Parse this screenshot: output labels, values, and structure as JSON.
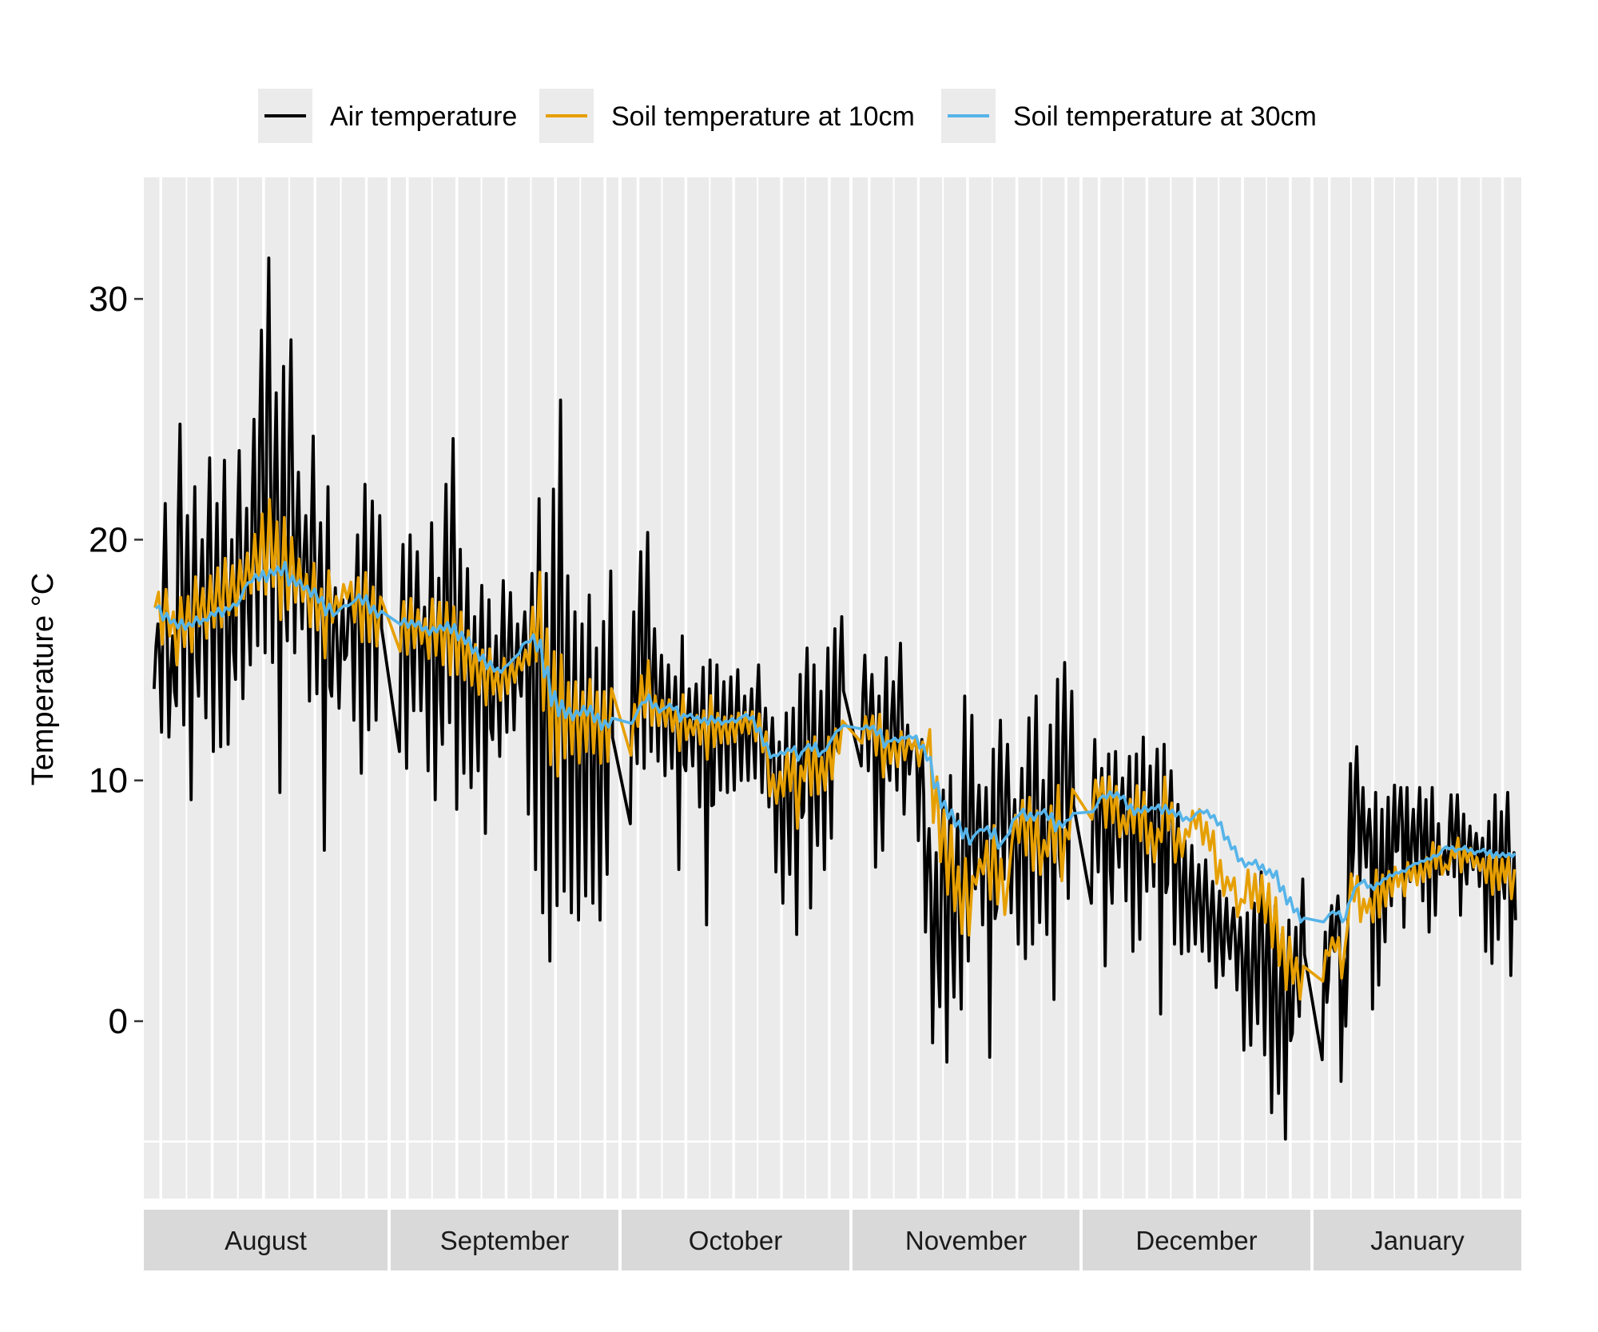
{
  "chart_data": {
    "type": "line",
    "title": "",
    "xlabel": "",
    "ylabel": "Temperature °C",
    "ylim": [
      -6.5,
      35
    ],
    "yticks": [
      0,
      10,
      20,
      30
    ],
    "ytick_labels": [
      "0",
      "10",
      "20",
      "30"
    ],
    "grid": true,
    "legend_position": "top",
    "facets": [
      "August",
      "September",
      "October",
      "November",
      "December",
      "January"
    ],
    "facet_days": [
      31,
      30,
      31,
      30,
      31,
      31
    ],
    "series": [
      {
        "name": "Air temperature",
        "color": "#000000",
        "daily_max": {
          "August": [
            16.5,
            21.5,
            16,
            24.8,
            21,
            22.2,
            20,
            23.4,
            21.5,
            23.3,
            20,
            23.7,
            21.3,
            25,
            28.7,
            31.7,
            26.1,
            27.2,
            28.3,
            22.8,
            21,
            24.3,
            20.7,
            22.2,
            18,
            17.5,
            18,
            20.2,
            22.3,
            21.6,
            21
          ],
          "September": [
            19.8,
            20.2,
            19.5,
            17.2,
            20.7,
            18.4,
            22.3,
            24.2,
            19.6,
            18.8,
            16.8,
            18.1,
            17.5,
            16,
            18.3,
            17.8,
            16.5,
            17,
            18.6,
            21.7,
            18.6,
            22.1,
            25.8,
            18.5,
            17,
            16.5,
            17.7,
            15.5,
            16.6,
            18.7
          ],
          "October": [
            17,
            19.5,
            20.3,
            16.3,
            15.2,
            14.8,
            14.3,
            16,
            13.8,
            14,
            14.7,
            15,
            14.8,
            14.1,
            14.3,
            14.6,
            13.5,
            13.8,
            14.8,
            13,
            12.6,
            11.6,
            12.8,
            13,
            14.4,
            15.5,
            14.8,
            13.7,
            15.5,
            16.3,
            16.8
          ],
          "November": [
            15.2,
            14.4,
            13.5,
            15.1,
            14.1,
            15.7,
            12.3,
            11.6,
            11.7,
            8,
            7,
            9.6,
            10.2,
            8.6,
            13.5,
            12.7,
            9.8,
            9.7,
            11.3,
            12.5,
            11.5,
            9.2,
            10.5,
            12.6,
            13.5,
            10,
            12.3,
            14.2,
            14.9,
            13.7
          ],
          "December": [
            11.7,
            10.5,
            11.1,
            11.2,
            10.1,
            11,
            11.1,
            11.8,
            10.6,
            11.3,
            11.5,
            10.4,
            9,
            7.5,
            7.3,
            6.5,
            6.7,
            5.8,
            5.4,
            5.1,
            4.7,
            4.3,
            4.5,
            4.9,
            6.2,
            5.3,
            4.8,
            3.6,
            4.2,
            3.9,
            5.9
          ],
          "January": [
            3.7,
            4.8,
            5.2,
            2.6,
            10.7,
            11.4,
            9.7,
            8.8,
            9.5,
            8.8,
            9.3,
            9.8,
            9.7,
            9.7,
            8.8,
            9.7,
            9.2,
            9.7,
            8.2,
            7.1,
            9.4,
            9.4,
            8.6,
            8.1,
            7.8,
            7.6,
            8.3,
            9.4,
            8.7,
            9.5,
            7
          ]
        },
        "daily_min": {
          "August": [
            13.8,
            12,
            11.8,
            13.1,
            12.3,
            9.2,
            13.5,
            12.6,
            11.2,
            11.4,
            11.5,
            14.2,
            13.4,
            14.8,
            15.6,
            15.3,
            14.9,
            9.5,
            15.8,
            15.3,
            16.3,
            13.3,
            13.6,
            7.1,
            13.5,
            13,
            15.2,
            12.5,
            10.3,
            12.1,
            12.5
          ],
          "September": [
            11.2,
            10.5,
            12.9,
            12.9,
            10.4,
            9.2,
            11.5,
            12.4,
            8.8,
            10.3,
            9.7,
            10.4,
            7.8,
            11.7,
            11,
            12,
            12.1,
            13.5,
            8.6,
            6.3,
            4.5,
            2.5,
            4.8,
            5.4,
            4.5,
            4.2,
            5.2,
            4.9,
            4.2,
            6.1
          ],
          "October": [
            8.2,
            10.7,
            10.5,
            11.2,
            10.8,
            10.2,
            10.5,
            6.3,
            10.4,
            10.6,
            8.9,
            4,
            9,
            9.6,
            9.5,
            9.6,
            10,
            10,
            10.1,
            9.5,
            8.9,
            6.2,
            4.9,
            6.1,
            3.6,
            8.7,
            4.7,
            7.3,
            6.3,
            7.6,
            11.2
          ],
          "November": [
            10.6,
            10.4,
            6.4,
            7.1,
            10,
            9.6,
            8.6,
            11.2,
            7.5,
            3.7,
            -0.9,
            0.6,
            -1.7,
            1,
            0.5,
            2.5,
            5.5,
            4,
            -1.5,
            4.7,
            5.9,
            4.5,
            3.2,
            2.6,
            3.2,
            4.1,
            3.6,
            0.9,
            6,
            5.1
          ],
          "December": [
            4.9,
            6.2,
            2.3,
            4.9,
            6.4,
            5,
            2.9,
            3.4,
            5.4,
            5.6,
            0.3,
            5.7,
            3.2,
            2.8,
            2.9,
            3.2,
            2.9,
            2.5,
            1.4,
            1.9,
            2.6,
            1.3,
            -1.2,
            -1,
            -0.1,
            -1.4,
            -3.8,
            -3,
            -4.9,
            -0.5,
            0.2
          ],
          "January": [
            -1.6,
            1.7,
            2.9,
            -2.5,
            2.2,
            7.1,
            5.8,
            6.4,
            0.5,
            1.5,
            3.3,
            4.8,
            7.1,
            3.9,
            5.8,
            6,
            5,
            3.7,
            4.4,
            6.2,
            6.1,
            6,
            4.4,
            5.7,
            6.3,
            5.6,
            2.9,
            2.4,
            3.4,
            5.1,
            1.9
          ]
        }
      },
      {
        "name": "Soil temperature at 10cm",
        "color": "#E69F00",
        "daily": {
          "August": [
            17.5,
            16.8,
            16.5,
            16.2,
            16.6,
            16.9,
            17.2,
            17.2,
            17.6,
            17.8,
            17.9,
            18,
            18.5,
            19,
            19.5,
            19.7,
            19.4,
            18.8,
            18.6,
            18.3,
            18,
            17.7,
            17.1,
            16.9,
            17.1,
            17.6,
            17.9,
            17.5,
            17.2,
            16.9,
            16.6
          ],
          "September": [
            16.4,
            16.4,
            16.3,
            16.2,
            16.3,
            16.3,
            16.1,
            15.8,
            15.7,
            15.2,
            14.8,
            14.5,
            14.3,
            14.1,
            14.2,
            14.3,
            14.6,
            15,
            16,
            16.8,
            14.6,
            13,
            12.7,
            12.5,
            12.6,
            12.2,
            12.7,
            12.4,
            12.2,
            12.3
          ],
          "October": [
            12.1,
            13.3,
            13.8,
            12.9,
            12.8,
            12.8,
            12.5,
            12.4,
            12.1,
            12.3,
            12.2,
            12.2,
            12.1,
            12.1,
            12.1,
            12.2,
            12.4,
            12.4,
            12.2,
            11.6,
            9.8,
            9.7,
            10.3,
            10.4,
            9.3,
            10.8,
            10.6,
            10.2,
            10.7,
            11.1,
            11.8
          ],
          "November": [
            12.1,
            12.2,
            11.9,
            11.1,
            11.2,
            11.3,
            11.3,
            11.5,
            11.1,
            11.6,
            9.2,
            7.7,
            6.7,
            5.5,
            5.2,
            4.8,
            6.2,
            6.8,
            6.6,
            5.8,
            5.1,
            8,
            8.3,
            8.1,
            7.5,
            6.8,
            7.9,
            8.2,
            6.9,
            8.6
          ],
          "December": [
            9.2,
            9.6,
            9.1,
            9,
            8.1,
            8.5,
            8.8,
            8.5,
            7.6,
            7.3,
            8.8,
            8.5,
            7.3,
            7.4,
            8.2,
            8.4,
            7.8,
            7.5,
            6.2,
            5.6,
            5.7,
            4.7,
            5.6,
            5.4,
            5.3,
            4.9,
            4.1,
            3.1,
            2.4,
            2.1,
            1.6
          ],
          "January": [
            2.3,
            3.1,
            3.2,
            2.4,
            5.1,
            5.5,
            4.6,
            4.8,
            5.2,
            5.2,
            5.5,
            5.8,
            5.9,
            5.9,
            6.2,
            6.1,
            6.3,
            6.7,
            6.8,
            6.3,
            6.7,
            7.2,
            6.7,
            6.9,
            6.6,
            6.5,
            6.4,
            6.1,
            6.1,
            6.3,
            5.7
          ]
        }
      },
      {
        "name": "Soil temperature at 30cm",
        "color": "#56B4E9",
        "daily": {
          "August": [
            17.2,
            16.8,
            16.6,
            16.5,
            16.4,
            16.6,
            16.6,
            16.8,
            17,
            17,
            17.2,
            17.4,
            18.1,
            18.4,
            18.5,
            18.5,
            18.7,
            18.8,
            18.3,
            18.2,
            18,
            17.8,
            17.5,
            17.1,
            16.9,
            17.2,
            17.3,
            17.6,
            17.5,
            17.1,
            16.9
          ],
          "September": [
            16.6,
            16.5,
            16.5,
            16.3,
            16.2,
            16.3,
            16.4,
            16.3,
            16,
            15.8,
            15.4,
            15.1,
            14.8,
            14.6,
            14.6,
            14.9,
            15.2,
            15.7,
            15.9,
            15.6,
            14.5,
            13.4,
            13,
            12.8,
            12.7,
            12.9,
            12.9,
            12.6,
            12.3,
            12.4
          ],
          "October": [
            12.5,
            13.1,
            13.4,
            13.1,
            12.9,
            13.1,
            13,
            12.6,
            12.7,
            12.6,
            12.5,
            12.5,
            12.5,
            12.4,
            12.5,
            12.5,
            12.7,
            12.6,
            12.1,
            11.5,
            11,
            11.1,
            11.2,
            11.3,
            11,
            11.4,
            11.4,
            11.1,
            11.4,
            11.9,
            12.2
          ],
          "November": [
            12.2,
            12.2,
            12,
            11.5,
            11.7,
            11.7,
            11.8,
            11.8,
            11.4,
            10.9,
            9.8,
            9,
            8.6,
            8.2,
            7.8,
            7.5,
            7.9,
            8,
            7.8,
            7.3,
            7.7,
            8.4,
            8.7,
            8.5,
            8.5,
            8.7,
            8.5,
            8.1,
            8.2,
            8.5
          ],
          "December": [
            8.8,
            9.3,
            9.4,
            9.4,
            9.3,
            8.9,
            8.7,
            8.8,
            8.8,
            8.9,
            8.8,
            8.7,
            8.6,
            8.4,
            8.4,
            8.7,
            8.7,
            8.5,
            8.2,
            7.6,
            7.2,
            6.7,
            6.5,
            6.6,
            6.4,
            6.2,
            6.1,
            5.5,
            5,
            4.6,
            4.2
          ],
          "January": [
            4.2,
            4.5,
            4.5,
            4.2,
            5,
            5.6,
            5.8,
            5.6,
            5.6,
            5.8,
            6,
            6.1,
            6.2,
            6.3,
            6.5,
            6.6,
            6.7,
            6.8,
            6.9,
            7.2,
            7.2,
            7.1,
            7.2,
            7.1,
            7,
            7.1,
            7,
            6.9,
            6.9,
            6.9,
            6.9
          ]
        }
      }
    ]
  },
  "legend": {
    "items": [
      {
        "label": "Air temperature",
        "color": "#000000"
      },
      {
        "label": "Soil temperature at 10cm",
        "color": "#E69F00"
      },
      {
        "label": "Soil temperature at 30cm",
        "color": "#56B4E9"
      }
    ]
  }
}
